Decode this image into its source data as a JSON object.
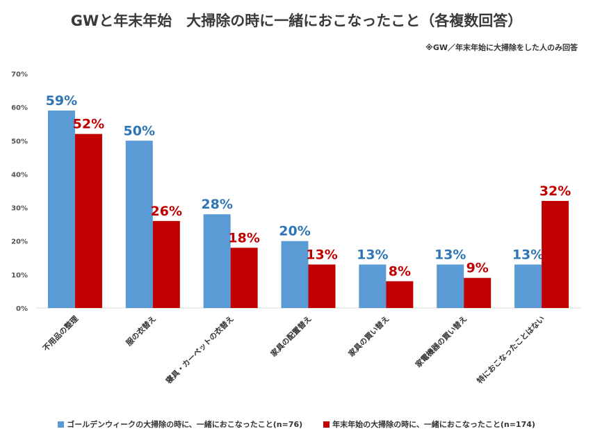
{
  "title": "GWと年末年始　大掃除の時に一緒におこなったこと（各複数回答）",
  "note": "※GW／年末年始に大掃除をした人のみ回答",
  "chart_data": {
    "type": "bar",
    "categories": [
      "不用品の整理",
      "服の衣替え",
      "寝具・カーペットの衣替え",
      "家具の配置替え",
      "家具の買い替え",
      "家電機器の買い替え",
      "特におこなったことはない"
    ],
    "series": [
      {
        "name": "ゴールデンウィークの大掃除の時に、一緒におこなったこと(n=76)",
        "color": "#5b9bd5",
        "values": [
          59,
          50,
          28,
          20,
          13,
          13,
          13
        ],
        "labels": [
          "59%",
          "50%",
          "28%",
          "20%",
          "13%",
          "13%",
          "13%"
        ]
      },
      {
        "name": "年末年始の大掃除の時に、一緒におこなったこと(n=174)",
        "color": "#c00000",
        "values": [
          52,
          26,
          18,
          13,
          8,
          9,
          32
        ],
        "labels": [
          "52%",
          "26%",
          "18%",
          "13%",
          "8%",
          "9%",
          "32%"
        ]
      }
    ],
    "ylim": [
      0,
      70
    ],
    "yticks": [
      0,
      10,
      20,
      30,
      40,
      50,
      60,
      70
    ],
    "ytick_labels": [
      "0%",
      "10%",
      "20%",
      "30%",
      "40%",
      "50%",
      "60%",
      "70%"
    ],
    "label_colors": [
      "#2e75b6",
      "#c00000"
    ],
    "grid": false,
    "legend": "bottom"
  }
}
